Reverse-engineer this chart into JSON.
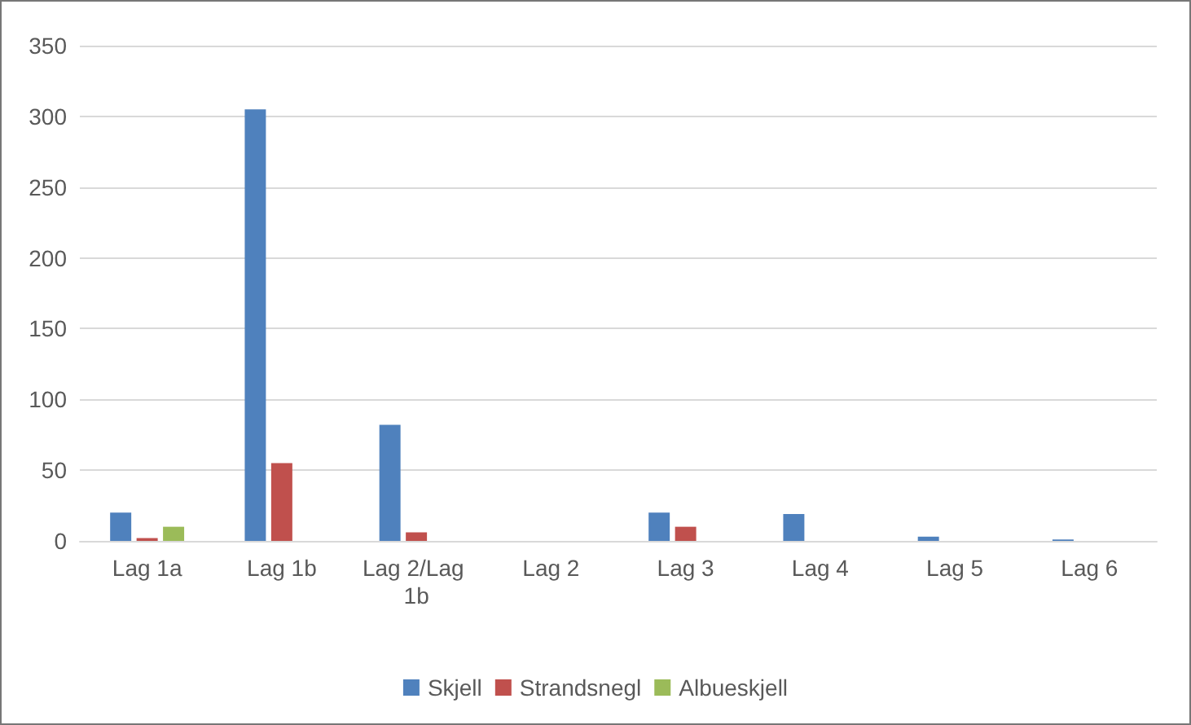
{
  "chart_data": {
    "type": "bar",
    "categories": [
      "Lag 1a",
      "Lag 1b",
      "Lag 2/Lag 1b",
      "Lag 2",
      "Lag 3",
      "Lag 4",
      "Lag 5",
      "Lag 6"
    ],
    "series": [
      {
        "name": "Skjell",
        "color": "#4f81bd",
        "values": [
          20,
          305,
          82,
          0,
          20,
          19,
          3,
          1
        ]
      },
      {
        "name": "Strandsnegl",
        "color": "#c0504d",
        "values": [
          2,
          55,
          6,
          0,
          10,
          0,
          0,
          0
        ]
      },
      {
        "name": "Albueskjell",
        "color": "#9bbb59",
        "values": [
          10,
          0,
          0,
          0,
          0,
          0,
          0,
          0
        ]
      }
    ],
    "ylim": [
      0,
      350
    ],
    "yticks": [
      0,
      50,
      100,
      150,
      200,
      250,
      300,
      350
    ],
    "grid": "y",
    "legend": "bottom"
  }
}
